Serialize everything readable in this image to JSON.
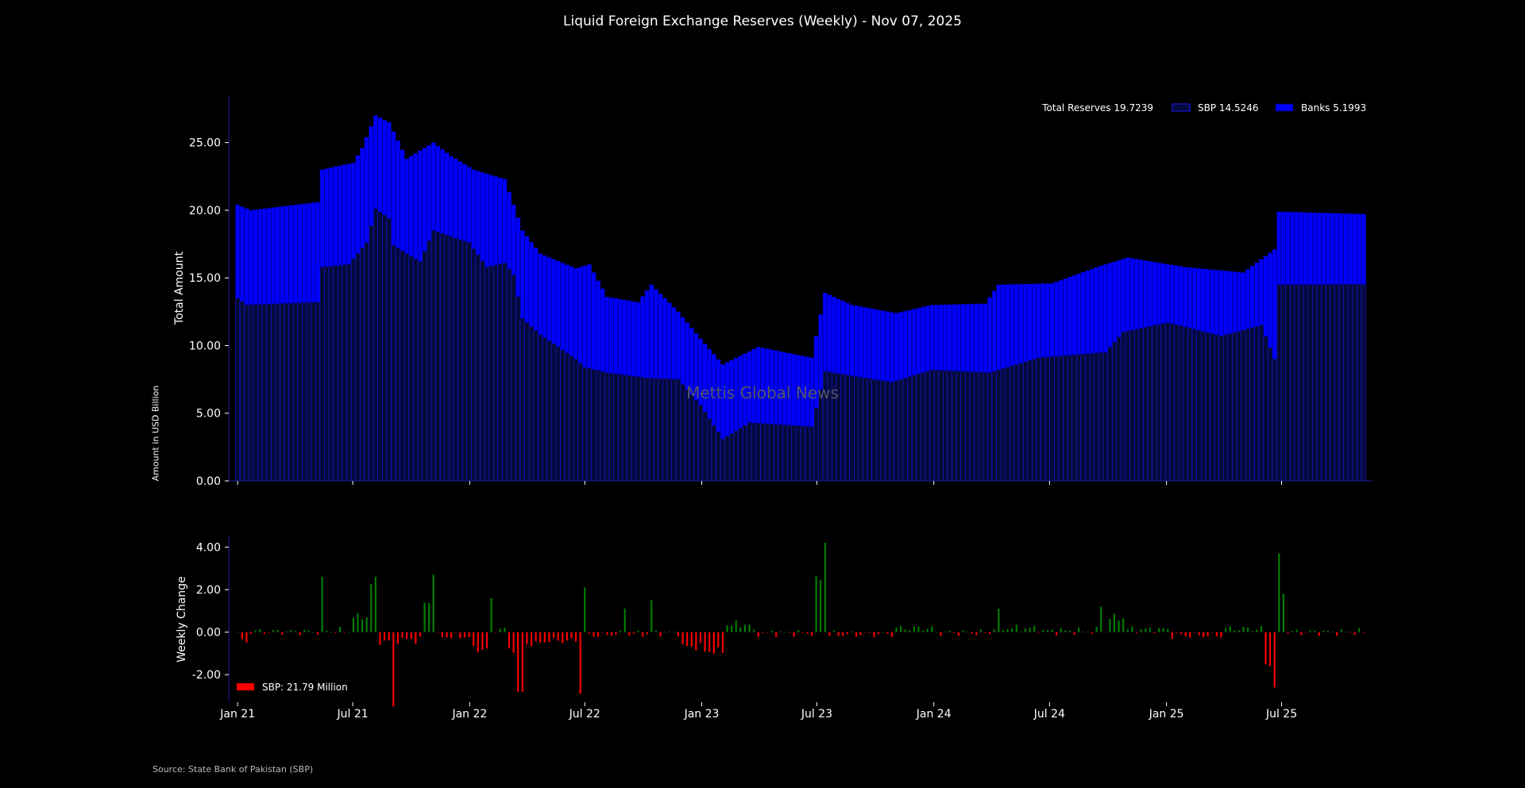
{
  "title": "Liquid Foreign Exchange Reserves (Weekly) - Nov 07, 2025",
  "outer_ylabel": "Amount in USD Billion",
  "source": "Source: State Bank of Pakistan (SBP)",
  "watermark": "Mettis Global News",
  "colors": {
    "background": "#000000",
    "sbp": "#050a3a",
    "sbp_edge": "#1a1aff",
    "banks": "#0000ff",
    "banks_edge": "#000066",
    "positive": "#008000",
    "negative": "#ff0000",
    "axis": "#1a1a99"
  },
  "chart_data": [
    {
      "type": "bar",
      "stacked": true,
      "ylabel": "Total Amount",
      "ylim": [
        0,
        28.5
      ],
      "yticks": [
        "0.00",
        "5.00",
        "10.00",
        "15.00",
        "20.00",
        "25.00"
      ],
      "legend": {
        "placement": "top-right",
        "total_label": "Total Reserves 19.7239",
        "entries": [
          {
            "key": "sbp",
            "label": "SBP 14.5246"
          },
          {
            "key": "banks",
            "label": "Banks 5.1993"
          }
        ]
      },
      "sbp_anchors": [
        [
          "2021-01-01",
          13.5
        ],
        [
          "2021-01-15",
          13.0
        ],
        [
          "2021-05-07",
          13.2
        ],
        [
          "2021-05-14",
          15.8
        ],
        [
          "2021-06-25",
          16.0
        ],
        [
          "2021-07-23",
          17.6
        ],
        [
          "2021-08-06",
          20.1
        ],
        [
          "2021-08-27",
          19.4
        ],
        [
          "2021-09-03",
          17.4
        ],
        [
          "2021-10-15",
          16.2
        ],
        [
          "2021-11-05",
          18.5
        ],
        [
          "2021-12-31",
          17.6
        ],
        [
          "2022-01-28",
          15.8
        ],
        [
          "2022-02-25",
          16.1
        ],
        [
          "2022-03-11",
          15.2
        ],
        [
          "2022-03-25",
          12.0
        ],
        [
          "2022-04-22",
          10.8
        ],
        [
          "2022-06-17",
          9.0
        ],
        [
          "2022-06-30",
          8.4
        ],
        [
          "2022-08-05",
          8.0
        ],
        [
          "2022-10-07",
          7.6
        ],
        [
          "2022-11-25",
          7.5
        ],
        [
          "2022-12-30",
          5.6
        ],
        [
          "2023-02-03",
          3.1
        ],
        [
          "2023-03-17",
          4.3
        ],
        [
          "2023-06-23",
          4.0
        ],
        [
          "2023-07-14",
          8.1
        ],
        [
          "2023-09-01",
          7.7
        ],
        [
          "2023-10-27",
          7.3
        ],
        [
          "2023-12-29",
          8.2
        ],
        [
          "2024-03-29",
          8.0
        ],
        [
          "2024-06-14",
          9.1
        ],
        [
          "2024-09-27",
          9.5
        ],
        [
          "2024-10-25",
          11.0
        ],
        [
          "2025-01-03",
          11.7
        ],
        [
          "2025-03-28",
          10.7
        ],
        [
          "2025-05-30",
          11.5
        ],
        [
          "2025-06-20",
          9.0
        ],
        [
          "2025-06-27",
          14.5
        ],
        [
          "2025-11-07",
          14.5246
        ]
      ],
      "total_anchors": [
        [
          "2021-01-01",
          20.4
        ],
        [
          "2021-01-22",
          20.0
        ],
        [
          "2021-05-07",
          20.6
        ],
        [
          "2021-05-14",
          23.0
        ],
        [
          "2021-06-11",
          23.3
        ],
        [
          "2021-07-02",
          23.5
        ],
        [
          "2021-07-16",
          24.6
        ],
        [
          "2021-08-06",
          27.0
        ],
        [
          "2021-08-27",
          26.5
        ],
        [
          "2021-09-24",
          23.8
        ],
        [
          "2021-11-05",
          25.0
        ],
        [
          "2021-12-03",
          24.0
        ],
        [
          "2022-01-07",
          23.0
        ],
        [
          "2022-02-25",
          22.3
        ],
        [
          "2022-03-25",
          18.5
        ],
        [
          "2022-04-22",
          16.8
        ],
        [
          "2022-06-17",
          15.7
        ],
        [
          "2022-07-08",
          16.0
        ],
        [
          "2022-08-05",
          13.6
        ],
        [
          "2022-09-23",
          13.2
        ],
        [
          "2022-10-14",
          14.5
        ],
        [
          "2022-11-25",
          12.5
        ],
        [
          "2022-12-30",
          10.5
        ],
        [
          "2023-02-03",
          8.6
        ],
        [
          "2023-03-31",
          9.9
        ],
        [
          "2023-06-23",
          9.1
        ],
        [
          "2023-07-14",
          13.9
        ],
        [
          "2023-08-25",
          13.0
        ],
        [
          "2023-11-03",
          12.4
        ],
        [
          "2023-12-29",
          13.0
        ],
        [
          "2024-03-22",
          13.1
        ],
        [
          "2024-04-12",
          14.5
        ],
        [
          "2024-07-05",
          14.6
        ],
        [
          "2024-09-20",
          15.9
        ],
        [
          "2024-11-01",
          16.5
        ],
        [
          "2025-01-31",
          15.8
        ],
        [
          "2025-05-02",
          15.4
        ],
        [
          "2025-06-20",
          17.1
        ],
        [
          "2025-06-27",
          19.9
        ],
        [
          "2025-11-07",
          19.7239
        ]
      ],
      "weekly_start": "2021-01-01",
      "weekly_end": "2025-11-07",
      "x_axis": {
        "type": "date",
        "range": [
          "2020-12-18",
          "2025-11-21"
        ]
      }
    },
    {
      "type": "bar",
      "ylabel": "Weekly Change",
      "ylim": [
        -3.3,
        4.5
      ],
      "yticks": [
        "-2.00",
        "0.00",
        "2.00",
        "4.00"
      ],
      "legend": {
        "placement": "bottom-left",
        "label": "SBP: 21.79 Million"
      },
      "x_axis": {
        "type": "date",
        "range": [
          "2020-12-18",
          "2025-11-21"
        ],
        "ticks": [
          {
            "date": "2021-01-01",
            "label": "Jan 21"
          },
          {
            "date": "2021-07-01",
            "label": "Jul 21"
          },
          {
            "date": "2022-01-01",
            "label": "Jan 22"
          },
          {
            "date": "2022-07-01",
            "label": "Jul 22"
          },
          {
            "date": "2023-01-01",
            "label": "Jan 23"
          },
          {
            "date": "2023-07-01",
            "label": "Jul 23"
          },
          {
            "date": "2024-01-01",
            "label": "Jan 24"
          },
          {
            "date": "2024-07-01",
            "label": "Jul 24"
          },
          {
            "date": "2025-01-01",
            "label": "Jan 25"
          },
          {
            "date": "2025-07-01",
            "label": "Jul 25"
          }
        ]
      },
      "notable_changes": [
        [
          "2021-05-14",
          2.6
        ],
        [
          "2021-08-06",
          2.6
        ],
        [
          "2021-11-05",
          2.7
        ],
        [
          "2022-02-04",
          1.6
        ],
        [
          "2022-06-24",
          -2.9
        ],
        [
          "2022-06-30",
          2.1
        ],
        [
          "2022-09-02",
          1.1
        ],
        [
          "2022-10-14",
          1.5
        ],
        [
          "2023-07-14",
          4.2
        ],
        [
          "2024-04-12",
          1.1
        ],
        [
          "2024-09-20",
          1.2
        ],
        [
          "2025-06-20",
          -2.6
        ],
        [
          "2025-06-27",
          3.7
        ],
        [
          "2025-07-04",
          1.8
        ]
      ]
    }
  ]
}
